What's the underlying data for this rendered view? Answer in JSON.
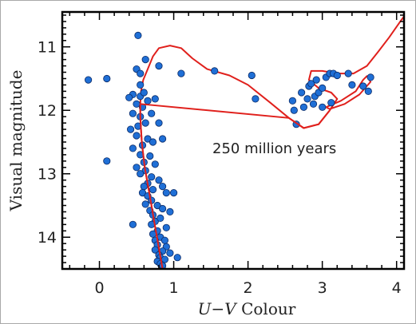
{
  "chart_data": {
    "type": "scatter",
    "title": "",
    "xlabel_italic": "U−V",
    "xlabel_rest": " Colour",
    "ylabel": "Visual magnitude",
    "xlim": [
      -0.5,
      4.1
    ],
    "ylim": [
      14.5,
      10.45
    ],
    "y_inverted": true,
    "x_ticks": [
      0,
      1,
      2,
      3,
      4
    ],
    "y_ticks": [
      11,
      12,
      13,
      14
    ],
    "annotation": "250 million years",
    "marker_color": "#1f6fd6",
    "curve_color": "#e0201c",
    "series": [
      {
        "kind": "points",
        "points": [
          [
            0.52,
            10.82
          ],
          [
            0.62,
            11.2
          ],
          [
            0.8,
            11.3
          ],
          [
            0.5,
            11.35
          ],
          [
            0.55,
            11.42
          ],
          [
            -0.15,
            11.52
          ],
          [
            0.1,
            11.5
          ],
          [
            1.1,
            11.42
          ],
          [
            1.55,
            11.38
          ],
          [
            2.05,
            11.45
          ],
          [
            2.1,
            11.82
          ],
          [
            0.55,
            11.6
          ],
          [
            0.45,
            11.75
          ],
          [
            0.55,
            11.78
          ],
          [
            0.6,
            11.72
          ],
          [
            0.4,
            11.8
          ],
          [
            0.5,
            11.9
          ],
          [
            0.65,
            11.85
          ],
          [
            0.58,
            11.95
          ],
          [
            0.75,
            11.82
          ],
          [
            0.45,
            12.05
          ],
          [
            0.55,
            12.1
          ],
          [
            0.7,
            12.05
          ],
          [
            0.52,
            12.25
          ],
          [
            0.62,
            12.2
          ],
          [
            0.42,
            12.3
          ],
          [
            0.8,
            12.2
          ],
          [
            0.5,
            12.4
          ],
          [
            0.65,
            12.45
          ],
          [
            0.58,
            12.55
          ],
          [
            0.72,
            12.5
          ],
          [
            0.45,
            12.6
          ],
          [
            0.85,
            12.45
          ],
          [
            0.55,
            12.7
          ],
          [
            0.68,
            12.72
          ],
          [
            0.6,
            12.82
          ],
          [
            0.75,
            12.85
          ],
          [
            0.5,
            12.9
          ],
          [
            0.62,
            12.95
          ],
          [
            0.1,
            12.8
          ],
          [
            0.55,
            13.0
          ],
          [
            0.7,
            13.05
          ],
          [
            0.65,
            13.15
          ],
          [
            0.8,
            13.1
          ],
          [
            0.6,
            13.2
          ],
          [
            0.72,
            13.25
          ],
          [
            0.58,
            13.3
          ],
          [
            0.85,
            13.2
          ],
          [
            0.9,
            13.3
          ],
          [
            0.65,
            13.35
          ],
          [
            1.0,
            13.3
          ],
          [
            0.7,
            13.42
          ],
          [
            0.62,
            13.48
          ],
          [
            0.78,
            13.5
          ],
          [
            0.68,
            13.58
          ],
          [
            0.85,
            13.55
          ],
          [
            0.72,
            13.65
          ],
          [
            0.95,
            13.6
          ],
          [
            0.75,
            13.75
          ],
          [
            0.82,
            13.7
          ],
          [
            0.7,
            13.8
          ],
          [
            0.45,
            13.8
          ],
          [
            0.78,
            13.9
          ],
          [
            0.9,
            13.85
          ],
          [
            0.72,
            13.95
          ],
          [
            0.82,
            14.0
          ],
          [
            0.75,
            14.05
          ],
          [
            0.88,
            14.05
          ],
          [
            0.78,
            14.12
          ],
          [
            0.9,
            14.15
          ],
          [
            0.75,
            14.2
          ],
          [
            0.85,
            14.22
          ],
          [
            0.8,
            14.28
          ],
          [
            0.95,
            14.25
          ],
          [
            0.82,
            14.32
          ],
          [
            0.78,
            14.38
          ],
          [
            0.88,
            14.35
          ],
          [
            0.82,
            14.42
          ],
          [
            1.05,
            14.32
          ],
          [
            0.85,
            14.45
          ],
          [
            2.6,
            11.85
          ],
          [
            2.62,
            12.0
          ],
          [
            2.65,
            12.22
          ],
          [
            2.72,
            11.72
          ],
          [
            2.75,
            11.95
          ],
          [
            2.8,
            11.82
          ],
          [
            2.82,
            11.62
          ],
          [
            2.85,
            11.58
          ],
          [
            2.88,
            11.9
          ],
          [
            2.9,
            11.78
          ],
          [
            2.92,
            11.52
          ],
          [
            2.95,
            11.72
          ],
          [
            3.0,
            11.65
          ],
          [
            3.0,
            11.95
          ],
          [
            3.05,
            11.48
          ],
          [
            3.1,
            11.42
          ],
          [
            3.12,
            11.88
          ],
          [
            3.15,
            11.42
          ],
          [
            3.2,
            11.45
          ],
          [
            3.35,
            11.42
          ],
          [
            3.4,
            11.6
          ],
          [
            3.55,
            11.62
          ],
          [
            3.62,
            11.7
          ],
          [
            3.65,
            11.48
          ]
        ]
      },
      {
        "kind": "isochrone",
        "points": [
          [
            0.85,
            14.5
          ],
          [
            0.82,
            14.3
          ],
          [
            0.79,
            14.1
          ],
          [
            0.76,
            13.9
          ],
          [
            0.73,
            13.7
          ],
          [
            0.7,
            13.5
          ],
          [
            0.67,
            13.3
          ],
          [
            0.64,
            13.1
          ],
          [
            0.61,
            12.9
          ],
          [
            0.59,
            12.7
          ],
          [
            0.57,
            12.5
          ],
          [
            0.56,
            12.3
          ],
          [
            0.55,
            12.1
          ],
          [
            0.55,
            11.9
          ],
          [
            0.56,
            11.7
          ],
          [
            0.59,
            11.52
          ],
          [
            0.65,
            11.35
          ],
          [
            0.72,
            11.15
          ],
          [
            0.8,
            11.02
          ],
          [
            0.95,
            10.98
          ],
          [
            1.1,
            11.02
          ],
          [
            1.25,
            11.18
          ],
          [
            1.45,
            11.35
          ],
          [
            1.75,
            11.45
          ],
          [
            2.0,
            11.6
          ],
          [
            2.3,
            11.88
          ],
          [
            2.55,
            12.12
          ],
          [
            2.75,
            12.28
          ],
          [
            2.95,
            12.22
          ],
          [
            3.1,
            12.0
          ],
          [
            3.2,
            11.82
          ],
          [
            3.12,
            11.72
          ],
          [
            2.95,
            11.65
          ],
          [
            2.82,
            11.52
          ],
          [
            2.85,
            11.38
          ],
          [
            3.0,
            11.38
          ],
          [
            3.2,
            11.42
          ],
          [
            3.42,
            11.42
          ],
          [
            3.6,
            11.3
          ],
          [
            3.75,
            11.08
          ],
          [
            3.9,
            10.85
          ],
          [
            4.05,
            10.6
          ],
          [
            4.1,
            10.52
          ]
        ]
      },
      {
        "kind": "isochrone-loop",
        "points": [
          [
            3.05,
            11.95
          ],
          [
            3.25,
            11.85
          ],
          [
            3.45,
            11.7
          ],
          [
            3.55,
            11.52
          ],
          [
            3.6,
            11.46
          ],
          [
            3.65,
            11.55
          ],
          [
            3.5,
            11.75
          ],
          [
            3.3,
            11.9
          ],
          [
            3.1,
            11.98
          ],
          [
            3.05,
            11.95
          ]
        ]
      }
    ]
  }
}
